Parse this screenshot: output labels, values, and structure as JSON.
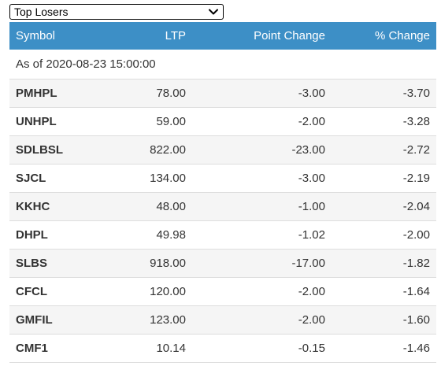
{
  "filter": {
    "selected": "Top Losers"
  },
  "table": {
    "headers": {
      "symbol": "Symbol",
      "ltp": "LTP",
      "point_change": "Point Change",
      "pct_change": "% Change"
    },
    "as_of": "As of 2020-08-23 15:00:00",
    "rows": [
      {
        "symbol": "PMHPL",
        "ltp": "78.00",
        "point_change": "-3.00",
        "pct_change": "-3.70"
      },
      {
        "symbol": "UNHPL",
        "ltp": "59.00",
        "point_change": "-2.00",
        "pct_change": "-3.28"
      },
      {
        "symbol": "SDLBSL",
        "ltp": "822.00",
        "point_change": "-23.00",
        "pct_change": "-2.72"
      },
      {
        "symbol": "SJCL",
        "ltp": "134.00",
        "point_change": "-3.00",
        "pct_change": "-2.19"
      },
      {
        "symbol": "KKHC",
        "ltp": "48.00",
        "point_change": "-1.00",
        "pct_change": "-2.04"
      },
      {
        "symbol": "DHPL",
        "ltp": "49.98",
        "point_change": "-1.02",
        "pct_change": "-2.00"
      },
      {
        "symbol": "SLBS",
        "ltp": "918.00",
        "point_change": "-17.00",
        "pct_change": "-1.82"
      },
      {
        "symbol": "CFCL",
        "ltp": "120.00",
        "point_change": "-2.00",
        "pct_change": "-1.64"
      },
      {
        "symbol": "GMFIL",
        "ltp": "123.00",
        "point_change": "-2.00",
        "pct_change": "-1.60"
      },
      {
        "symbol": "CMF1",
        "ltp": "10.14",
        "point_change": "-0.15",
        "pct_change": "-1.46"
      }
    ]
  },
  "icons": {
    "dropdown": "chevron-down-icon"
  },
  "colors": {
    "header_bg": "#3d8fc6",
    "header_text": "#ffffff",
    "stripe": "#f5f5f5",
    "divider": "#dddddd"
  }
}
